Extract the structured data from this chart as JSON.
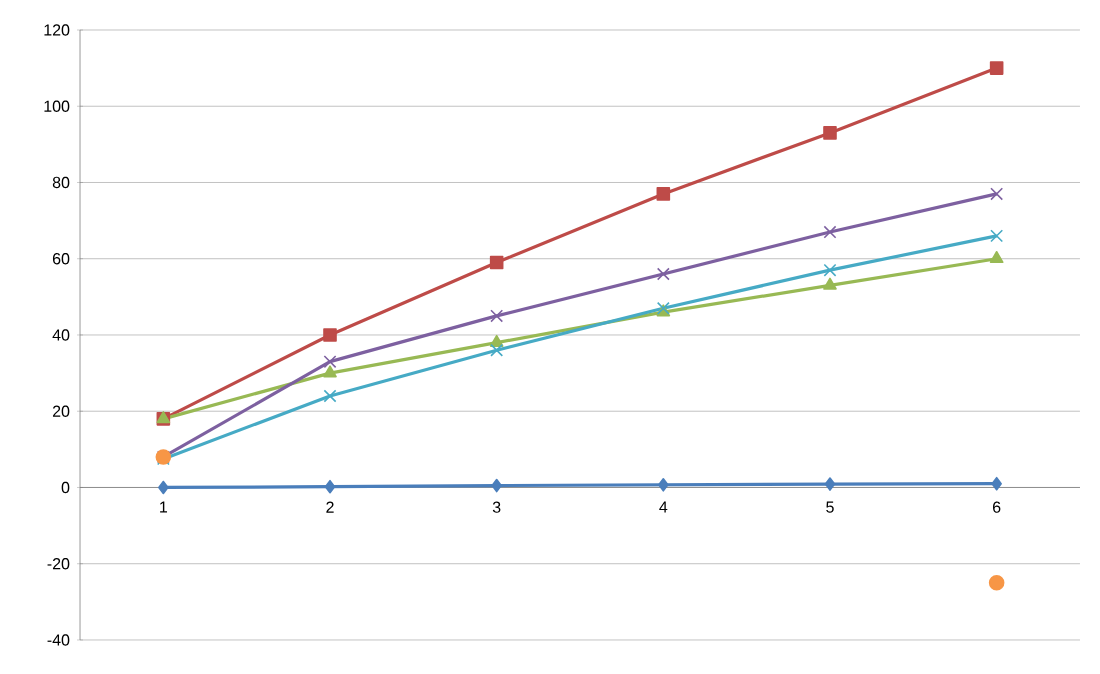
{
  "chart_data": {
    "type": "line",
    "categories": [
      "1",
      "2",
      "3",
      "4",
      "5",
      "6"
    ],
    "series": [
      {
        "color": "#4a7ebb",
        "marker": "diamond",
        "values": [
          0,
          0.2,
          0.5,
          0.7,
          0.9,
          1
        ]
      },
      {
        "color": "#be4b48",
        "marker": "square",
        "values": [
          18,
          40,
          59,
          77,
          93,
          110
        ]
      },
      {
        "color": "#98b954",
        "marker": "triangle",
        "values": [
          18,
          30,
          38,
          46,
          53,
          60
        ]
      },
      {
        "color": "#7d60a0",
        "marker": "cross",
        "values": [
          8,
          33,
          45,
          56,
          67,
          77
        ]
      },
      {
        "color": "#46aac5",
        "marker": "cross",
        "values": [
          7.5,
          24,
          36,
          47,
          57,
          66
        ]
      },
      {
        "type": "scatter",
        "color": "#f79646",
        "marker": "circle",
        "values": [
          8,
          null,
          null,
          null,
          null,
          -25
        ]
      }
    ],
    "ylim": [
      -40,
      120
    ],
    "yticks": [
      -40,
      -20,
      0,
      20,
      40,
      60,
      80,
      100,
      120
    ],
    "grid": "y"
  }
}
